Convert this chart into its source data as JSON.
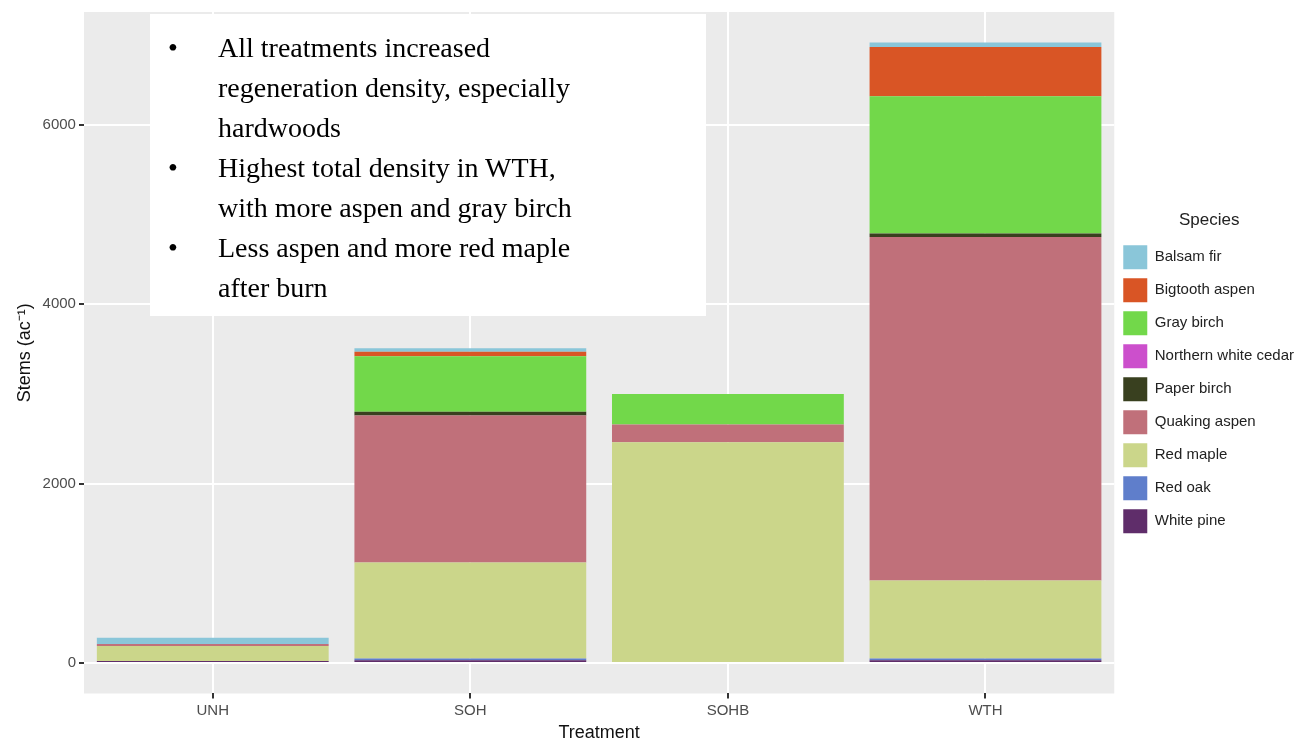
{
  "chart_data": {
    "type": "bar",
    "stacked": true,
    "xlabel": "Treatment",
    "ylabel": "Stems (ac⁻¹)",
    "legend_title": "Species",
    "legend": "right",
    "grid": true,
    "categories": [
      "UNH",
      "SOH",
      "SOHB",
      "WTH"
    ],
    "ylim": [
      -340,
      7260
    ],
    "yticks": [
      0,
      2000,
      4000,
      6000
    ],
    "series": [
      {
        "name": "White pine",
        "color": "#5f2d6a",
        "values": [
          20,
          30,
          0,
          30
        ]
      },
      {
        "name": "Red oak",
        "color": "#5f7ecb",
        "values": [
          0,
          20,
          0,
          20
        ]
      },
      {
        "name": "Red maple",
        "color": "#cbd68a",
        "values": [
          170,
          1070,
          2460,
          870
        ]
      },
      {
        "name": "Quaking aspen",
        "color": "#c0707a",
        "values": [
          20,
          1640,
          200,
          3830
        ]
      },
      {
        "name": "Paper birch",
        "color": "#39401f",
        "values": [
          0,
          40,
          0,
          40
        ]
      },
      {
        "name": "Northern white cedar",
        "color": "#cc4fcc",
        "values": [
          0,
          0,
          0,
          0
        ]
      },
      {
        "name": "Gray birch",
        "color": "#72d84a",
        "values": [
          0,
          620,
          340,
          1530
        ]
      },
      {
        "name": "Bigtooth aspen",
        "color": "#d95525",
        "values": [
          0,
          50,
          0,
          550
        ]
      },
      {
        "name": "Balsam fir",
        "color": "#8ac6d9",
        "values": [
          70,
          40,
          0,
          50
        ]
      }
    ],
    "annotations": [
      "• All treatments increased regeneration density, especially hardwoods",
      "• Highest total density in WTH, with more aspen and gray birch",
      "• Less aspen and more red maple after burn"
    ]
  }
}
